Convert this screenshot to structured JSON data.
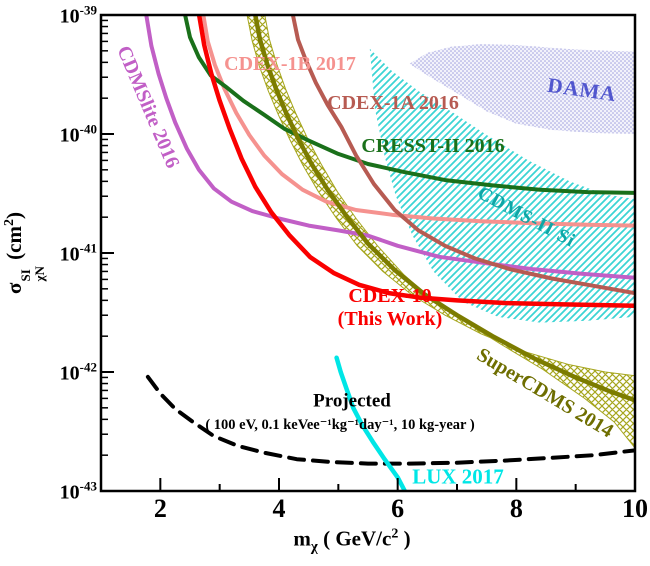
{
  "page": {
    "background": "#ffffff",
    "frame_color": "#000000"
  },
  "chart_data": {
    "type": "line",
    "title": "",
    "xlabel": "m_χ ( GeV/c² )",
    "ylabel": "σ_χN^SI (cm²)",
    "xlabel_parts": {
      "base": "m",
      "sub": "χ",
      "unit": " ( GeV/c",
      "sup": "2",
      "close": " )"
    },
    "ylabel_parts": {
      "base": "σ",
      "sup": "SI",
      "sub": "χN",
      "unit": " (cm",
      "sup2": "2",
      "close": ")"
    },
    "x_axis": {
      "scale": "linear",
      "min": 1,
      "max": 10,
      "major_ticks": [
        {
          "value": 2,
          "label": "2"
        },
        {
          "value": 4,
          "label": "4"
        },
        {
          "value": 6,
          "label": "6"
        },
        {
          "value": 8,
          "label": "8"
        },
        {
          "value": 10,
          "label": "10"
        }
      ],
      "minor_ticks": [
        3,
        5,
        7,
        9
      ]
    },
    "y_axis": {
      "scale": "log",
      "min": 1e-43,
      "max": 1e-39,
      "major_ticks": [
        {
          "value": 1e-39,
          "base": "10",
          "exp": "-39"
        },
        {
          "value": 1e-40,
          "base": "10",
          "exp": "-40"
        },
        {
          "value": 1e-41,
          "base": "10",
          "exp": "-41"
        },
        {
          "value": 1e-42,
          "base": "10",
          "exp": "-42"
        },
        {
          "value": 1e-43,
          "base": "10",
          "exp": "-43"
        }
      ],
      "minor_mantissas": [
        2,
        3,
        4,
        5,
        6,
        7,
        8,
        9
      ],
      "minor_decades": [
        -40,
        -41,
        -42,
        -43
      ]
    },
    "series": [
      {
        "id": "cdmslite-2016",
        "name": "CDMSlite 2016",
        "color": "#C15FC6",
        "width": 4,
        "style": "solid",
        "points": [
          [
            1.72,
            1.35e-39
          ],
          [
            1.85,
            5.5e-40
          ],
          [
            1.97,
            3.2e-40
          ],
          [
            2.1,
            2e-40
          ],
          [
            2.25,
            1.25e-40
          ],
          [
            2.45,
            7.5e-41
          ],
          [
            2.65,
            5e-41
          ],
          [
            2.9,
            3.5e-41
          ],
          [
            3.2,
            2.7e-41
          ],
          [
            3.55,
            2.25e-41
          ],
          [
            4.0,
            1.95e-41
          ],
          [
            4.5,
            1.7e-41
          ],
          [
            5.0,
            1.55e-41
          ],
          [
            5.5,
            1.4e-41
          ],
          [
            6.0,
            1.15e-41
          ],
          [
            6.7,
            9.3e-42
          ],
          [
            7.5,
            8.2e-42
          ],
          [
            8.3,
            7.3e-42
          ],
          [
            9.1,
            6.7e-42
          ],
          [
            10,
            6.2e-42
          ]
        ]
      },
      {
        "id": "cdex-1b-2017",
        "name": "CDEX-1B 2017",
        "color": "#F5928F",
        "width": 4,
        "style": "solid",
        "points": [
          [
            2.68,
            1.35e-39
          ],
          [
            2.8,
            6e-40
          ],
          [
            2.92,
            3.8e-40
          ],
          [
            3.08,
            2.4e-40
          ],
          [
            3.28,
            1.5e-40
          ],
          [
            3.5,
            9.8e-41
          ],
          [
            3.75,
            6.6e-41
          ],
          [
            4.05,
            4.6e-41
          ],
          [
            4.4,
            3.4e-41
          ],
          [
            4.8,
            2.7e-41
          ],
          [
            5.3,
            2.3e-41
          ],
          [
            5.9,
            2.1e-41
          ],
          [
            6.6,
            1.95e-41
          ],
          [
            7.4,
            1.85e-41
          ],
          [
            8.3,
            1.78e-41
          ],
          [
            9.2,
            1.73e-41
          ],
          [
            10,
            1.7e-41
          ]
        ]
      },
      {
        "id": "cresst-ii-2016",
        "name": "CRESST-II 2016",
        "color": "#1A701A",
        "width": 4,
        "style": "solid",
        "points": [
          [
            2.36,
            1.35e-39
          ],
          [
            2.5,
            6.5e-40
          ],
          [
            2.65,
            4.4e-40
          ],
          [
            2.85,
            3.1e-40
          ],
          [
            3.1,
            2.5e-40
          ],
          [
            3.4,
            1.9e-40
          ],
          [
            3.75,
            1.45e-40
          ],
          [
            4.1,
            1.1e-40
          ],
          [
            4.5,
            8.8e-41
          ],
          [
            5.0,
            6.8e-41
          ],
          [
            5.5,
            5.6e-41
          ],
          [
            6.1,
            4.8e-41
          ],
          [
            6.8,
            4.1e-41
          ],
          [
            7.6,
            3.7e-41
          ],
          [
            8.4,
            3.4e-41
          ],
          [
            9.2,
            3.25e-41
          ],
          [
            10,
            3.2e-41
          ]
        ]
      },
      {
        "id": "cdex-1a-2016",
        "name": "CDEX-1A 2016",
        "color": "#B75B52",
        "width": 4,
        "style": "solid",
        "points": [
          [
            4.18,
            1.35e-39
          ],
          [
            4.32,
            6.2e-40
          ],
          [
            4.45,
            4.2e-40
          ],
          [
            4.62,
            2.7e-40
          ],
          [
            4.82,
            1.75e-40
          ],
          [
            5.05,
            1.15e-40
          ],
          [
            5.3,
            6.6e-41
          ],
          [
            5.6,
            3.8e-41
          ],
          [
            5.95,
            2.3e-41
          ],
          [
            6.35,
            1.55e-41
          ],
          [
            6.8,
            1.15e-41
          ],
          [
            7.3,
            9e-42
          ],
          [
            7.9,
            7.3e-42
          ],
          [
            8.6,
            6.1e-42
          ],
          [
            9.3,
            5.3e-42
          ],
          [
            10,
            4.6e-42
          ]
        ]
      },
      {
        "id": "supercdms-2014",
        "name": "SuperCDMS 2014",
        "color": "#7C7C00",
        "label_color": "#6E6E00",
        "hatch_color": "#A6A61E",
        "width": 4.5,
        "style": "solid",
        "points": [
          [
            3.55,
            1.35e-39
          ],
          [
            3.68,
            6.2e-40
          ],
          [
            3.8,
            3.9e-40
          ],
          [
            3.95,
            2.4e-40
          ],
          [
            4.12,
            1.5e-40
          ],
          [
            4.32,
            9.2e-41
          ],
          [
            4.55,
            5.6e-41
          ],
          [
            4.82,
            3.4e-41
          ],
          [
            5.15,
            2e-41
          ],
          [
            5.5,
            1.2e-41
          ],
          [
            5.95,
            7.2e-42
          ],
          [
            6.45,
            4.5e-42
          ],
          [
            7.0,
            3e-42
          ],
          [
            7.6,
            2e-42
          ],
          [
            8.3,
            1.3e-42
          ],
          [
            9.0,
            9e-43
          ],
          [
            9.6,
            6.8e-43
          ],
          [
            10,
            5.8e-43
          ]
        ],
        "band_upper": [
          [
            3.41,
            1.35e-39
          ],
          [
            3.55,
            6e-40
          ],
          [
            3.67,
            3.7e-40
          ],
          [
            3.82,
            2.3e-40
          ],
          [
            3.99,
            1.45e-40
          ],
          [
            4.18,
            9e-41
          ],
          [
            4.4,
            5.5e-41
          ],
          [
            4.66,
            3.3e-41
          ],
          [
            4.97,
            1.95e-41
          ],
          [
            5.32,
            1.15e-41
          ],
          [
            5.75,
            7e-42
          ],
          [
            6.25,
            4.4e-42
          ],
          [
            6.8,
            3e-42
          ],
          [
            7.4,
            2.1e-42
          ],
          [
            8.1,
            1.5e-42
          ],
          [
            8.9,
            1.15e-42
          ],
          [
            9.5,
            1e-42
          ],
          [
            10,
            9.3e-43
          ]
        ],
        "band_lower": [
          [
            3.71,
            1.35e-39
          ],
          [
            3.84,
            6.2e-40
          ],
          [
            3.96,
            3.9e-40
          ],
          [
            4.11,
            2.4e-40
          ],
          [
            4.28,
            1.5e-40
          ],
          [
            4.48,
            9.2e-41
          ],
          [
            4.71,
            5.6e-41
          ],
          [
            4.98,
            3.3e-41
          ],
          [
            5.3,
            1.95e-41
          ],
          [
            5.66,
            1.15e-41
          ],
          [
            6.1,
            6.6e-42
          ],
          [
            6.6,
            4e-42
          ],
          [
            7.15,
            2.6e-42
          ],
          [
            7.75,
            1.7e-42
          ],
          [
            8.45,
            1.05e-42
          ],
          [
            9.15,
            6e-43
          ],
          [
            9.65,
            3.8e-43
          ],
          [
            10,
            2.3e-43
          ]
        ]
      },
      {
        "id": "cdex-10",
        "name": "CDEX-10",
        "label2": "(This Work)",
        "color": "#FA0000",
        "width": 4.5,
        "style": "solid",
        "points": [
          [
            2.61,
            1.35e-39
          ],
          [
            2.74,
            5.6e-40
          ],
          [
            2.86,
            3.2e-40
          ],
          [
            3.0,
            1.9e-40
          ],
          [
            3.17,
            1.1e-40
          ],
          [
            3.37,
            6.2e-41
          ],
          [
            3.6,
            3.6e-41
          ],
          [
            3.87,
            2.2e-41
          ],
          [
            4.18,
            1.4e-41
          ],
          [
            4.53,
            9.2e-42
          ],
          [
            4.92,
            6.8e-42
          ],
          [
            5.35,
            5.4e-42
          ],
          [
            5.85,
            4.6e-42
          ],
          [
            6.4,
            4.2e-42
          ],
          [
            7.0,
            4e-42
          ],
          [
            7.8,
            3.8e-42
          ],
          [
            8.8,
            3.7e-42
          ],
          [
            10,
            3.6e-42
          ]
        ]
      },
      {
        "id": "projected",
        "name": "Projected",
        "label2": "( 100 eV, 0.1 keVee⁻¹kg⁻¹day⁻¹, 10 kg-year )",
        "color": "#000000",
        "width": 4,
        "style": "dashed",
        "dash": "15 9",
        "points": [
          [
            1.79,
            9.1e-43
          ],
          [
            2.0,
            6.6e-43
          ],
          [
            2.25,
            4.9e-43
          ],
          [
            2.55,
            3.8e-43
          ],
          [
            2.9,
            2.9e-43
          ],
          [
            3.3,
            2.4e-43
          ],
          [
            3.75,
            2.1e-43
          ],
          [
            4.3,
            1.85e-43
          ],
          [
            4.9,
            1.75e-43
          ],
          [
            5.5,
            1.7e-43
          ],
          [
            6.2,
            1.7e-43
          ],
          [
            7.0,
            1.73e-43
          ],
          [
            7.8,
            1.8e-43
          ],
          [
            8.6,
            1.9e-43
          ],
          [
            9.3,
            2e-43
          ],
          [
            10,
            2.2e-43
          ]
        ]
      },
      {
        "id": "lux-2017",
        "name": "LUX 2017",
        "color": "#00E6E6",
        "width": 4.5,
        "style": "solid",
        "points": [
          [
            4.97,
            1.32e-42
          ],
          [
            5.04,
            1e-42
          ],
          [
            5.14,
            7.2e-43
          ],
          [
            5.25,
            5e-43
          ],
          [
            5.4,
            3.6e-43
          ],
          [
            5.58,
            2.6e-43
          ],
          [
            5.78,
            1.85e-43
          ],
          [
            6.0,
            1.3e-43
          ],
          [
            6.12,
            1e-43
          ]
        ]
      }
    ],
    "regions": [
      {
        "id": "dama",
        "name": "DAMA",
        "label_color": "#5156CE",
        "dot_color": "#9898DC",
        "fill": "#F2F2FB",
        "points": [
          [
            6.2,
            3.9e-40
          ],
          [
            6.5,
            4.8e-40
          ],
          [
            6.9,
            5.4e-40
          ],
          [
            7.4,
            5.7e-40
          ],
          [
            8.0,
            5.6e-40
          ],
          [
            8.8,
            5.2e-40
          ],
          [
            9.5,
            5e-40
          ],
          [
            10.3,
            4.9e-40
          ],
          [
            10.3,
            1e-40
          ],
          [
            9.3,
            1.02e-40
          ],
          [
            8.6,
            1.08e-40
          ],
          [
            8.0,
            1.22e-40
          ],
          [
            7.5,
            1.55e-40
          ],
          [
            7.0,
            2.2e-40
          ],
          [
            6.55,
            3e-40
          ]
        ]
      },
      {
        "id": "cdms-ii-si",
        "name": "CDMS-II Si",
        "label_color": "#0EA6A6",
        "hatch_color": "#3CD4D4",
        "points": [
          [
            5.53,
            5.2e-40
          ],
          [
            5.9,
            3.4e-40
          ],
          [
            6.35,
            2.3e-40
          ],
          [
            6.9,
            1.55e-40
          ],
          [
            7.5,
            9.8e-41
          ],
          [
            8.2,
            6e-41
          ],
          [
            8.9,
            4e-41
          ],
          [
            9.5,
            3.1e-41
          ],
          [
            10.3,
            2.7e-41
          ],
          [
            10.3,
            3e-42
          ],
          [
            9.2,
            2.7e-42
          ],
          [
            8.4,
            2.6e-42
          ],
          [
            7.7,
            2.9e-42
          ],
          [
            7.1,
            3.9e-42
          ],
          [
            6.6,
            7e-42
          ],
          [
            6.25,
            1.4e-41
          ],
          [
            5.97,
            3e-41
          ],
          [
            5.78,
            6.5e-41
          ],
          [
            5.62,
            1.6e-40
          ]
        ]
      }
    ]
  }
}
